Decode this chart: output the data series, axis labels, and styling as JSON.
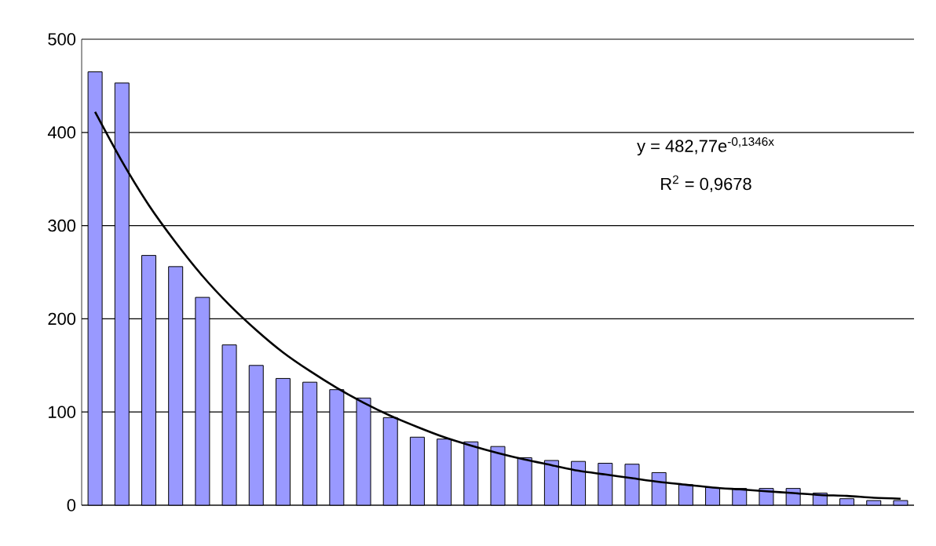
{
  "chart_data": {
    "type": "bar",
    "categories": [
      null,
      null,
      null,
      null,
      null,
      null,
      null,
      null,
      null,
      null,
      null,
      null,
      null,
      null,
      null,
      null,
      null,
      null,
      null,
      null,
      null,
      null,
      null,
      null,
      null,
      null,
      null,
      null,
      null,
      null,
      null
    ],
    "series": [
      {
        "color": "#9999ff",
        "values": [
          465,
          453,
          268,
          256,
          223,
          172,
          150,
          136,
          132,
          124,
          115,
          94,
          73,
          71,
          68,
          63,
          51,
          48,
          47,
          45,
          44,
          35,
          22,
          19,
          18,
          18,
          18,
          13,
          7,
          5,
          5
        ]
      },
      {
        "type": "line",
        "color": "#000000",
        "values": [
          422,
          369,
          322,
          282,
          246,
          215,
          188,
          164,
          144,
          126,
          110,
          96,
          84,
          73,
          64,
          56,
          49,
          43,
          37,
          33,
          29,
          25,
          22,
          19,
          17,
          15,
          13,
          11,
          10,
          8,
          7
        ]
      }
    ],
    "ylim": [
      0,
      500
    ],
    "yticks": [
      0,
      100,
      200,
      300,
      400,
      500
    ],
    "grid": "y",
    "tick_labels": "y",
    "annotations": [
      "y = 482,77e$^{-0,1346x}$",
      "R$^{2}$ = 0,9678"
    ]
  }
}
